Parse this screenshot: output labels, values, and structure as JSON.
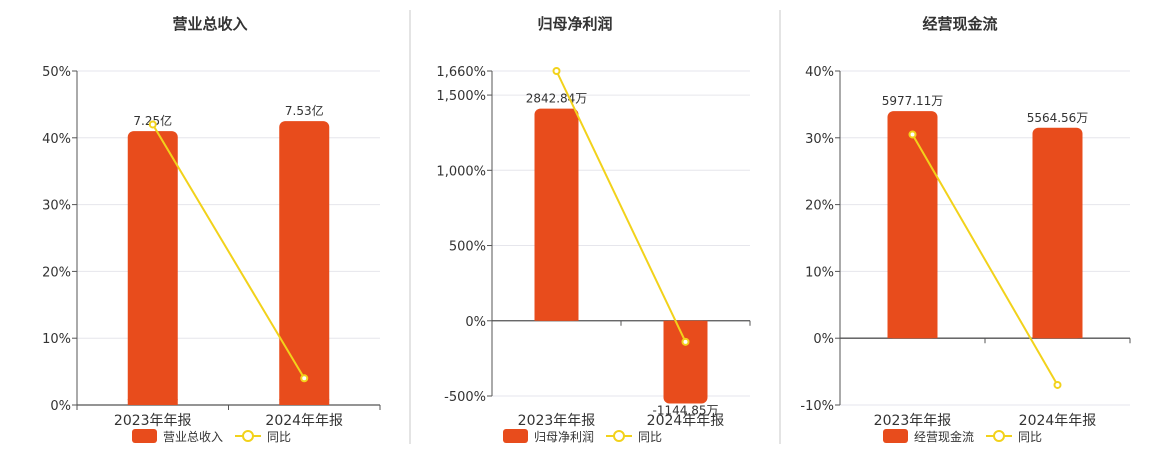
{
  "colors": {
    "bar": "#e84c1c",
    "line": "#f2d21b",
    "grid": "#e6e6ec",
    "axis": "#555555",
    "divider": "#c8c8c8",
    "text": "#333333"
  },
  "chart_data": [
    {
      "type": "bar",
      "title": "营业总收入",
      "categories": [
        "2023年年报",
        "2024年年报"
      ],
      "series": [
        {
          "name": "营业总收入",
          "type": "bar",
          "values": [
            41,
            42.5
          ],
          "labels": [
            "7.25亿",
            "7.53亿"
          ]
        },
        {
          "name": "同比",
          "type": "line",
          "values": [
            42,
            4
          ]
        }
      ],
      "ylim": [
        0,
        50
      ],
      "yticks": [
        0,
        10,
        20,
        30,
        40,
        50
      ],
      "ytick_labels": [
        "0%",
        "10%",
        "20%",
        "30%",
        "40%",
        "50%"
      ],
      "grid": true,
      "legend_position": "bottom"
    },
    {
      "type": "bar",
      "title": "归母净利润",
      "categories": [
        "2023年年报",
        "2024年年报"
      ],
      "series": [
        {
          "name": "归母净利润",
          "type": "bar",
          "values": [
            1410,
            -550
          ],
          "labels": [
            "2842.84万",
            "-1144.85万"
          ]
        },
        {
          "name": "同比",
          "type": "line",
          "values": [
            1660,
            -140
          ]
        }
      ],
      "ylim": [
        -500,
        1660
      ],
      "yticks": [
        -500,
        0,
        500,
        1000,
        1500,
        1660
      ],
      "ytick_labels": [
        "-500%",
        "0%",
        "500%",
        "1,000%",
        "1,500%",
        "1,660%"
      ],
      "grid": true,
      "legend_position": "bottom"
    },
    {
      "type": "bar",
      "title": "经营现金流",
      "categories": [
        "2023年年报",
        "2024年年报"
      ],
      "series": [
        {
          "name": "经营现金流",
          "type": "bar",
          "values": [
            34,
            31.5
          ],
          "labels": [
            "5977.11万",
            "5564.56万"
          ]
        },
        {
          "name": "同比",
          "type": "line",
          "values": [
            30.5,
            -7
          ]
        }
      ],
      "ylim": [
        -10,
        40
      ],
      "yticks": [
        -10,
        0,
        10,
        20,
        30,
        40
      ],
      "ytick_labels": [
        "-10%",
        "0%",
        "10%",
        "20%",
        "30%",
        "40%"
      ],
      "grid": true,
      "legend_position": "bottom"
    }
  ]
}
